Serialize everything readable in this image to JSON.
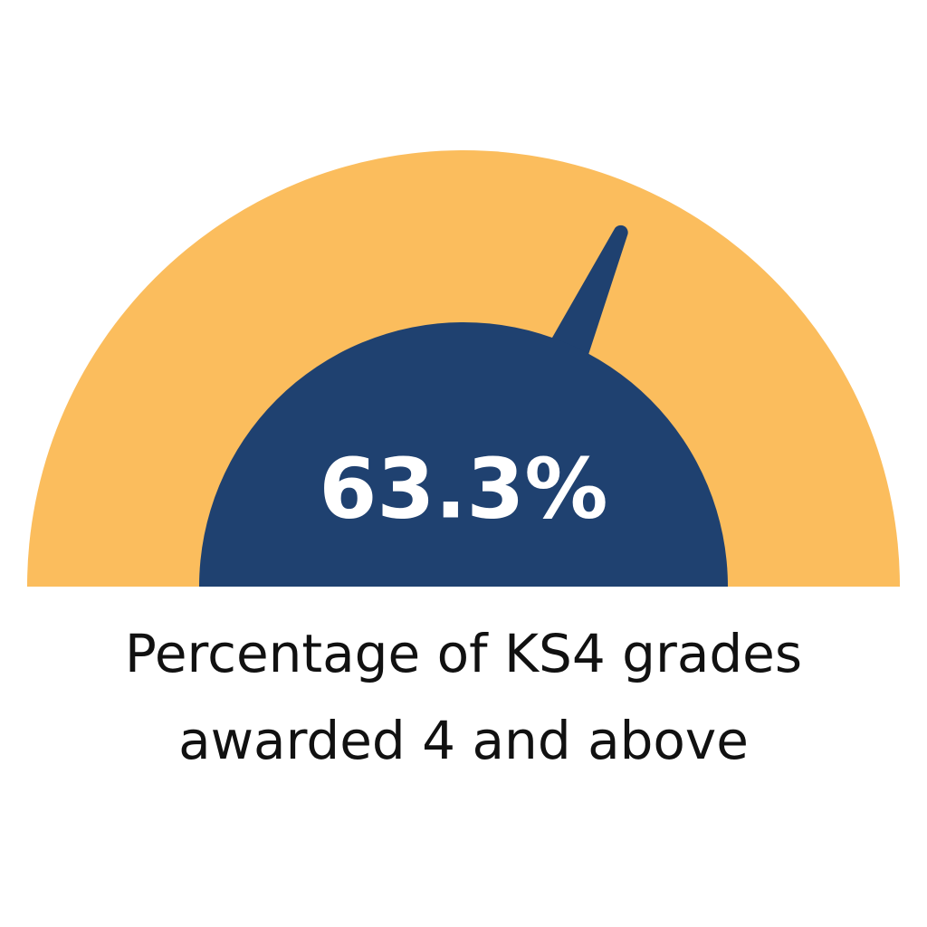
{
  "chart_data": {
    "type": "gauge",
    "values": [
      63.3
    ],
    "value_labels": [
      "63.3%"
    ],
    "ylim": [
      0,
      100
    ],
    "label_lines": [
      "Percentage of KS4 grades",
      "awarded 4 and above"
    ],
    "track_color": "#fbbd5d",
    "color": "#1f4170",
    "value_label_color": "#ffffff"
  }
}
